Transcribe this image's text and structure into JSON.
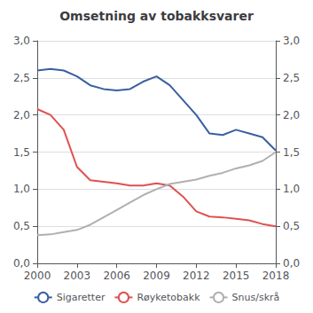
{
  "chart_data": {
    "type": "line",
    "title": "Omsetning av tobakksvarer",
    "x": [
      2000,
      2001,
      2002,
      2003,
      2004,
      2005,
      2006,
      2007,
      2008,
      2009,
      2010,
      2011,
      2012,
      2013,
      2014,
      2015,
      2016,
      2017,
      2018
    ],
    "series": [
      {
        "name": "Sigaretter",
        "color": "#3a5fa0",
        "values": [
          2.6,
          2.62,
          2.6,
          2.52,
          2.4,
          2.35,
          2.33,
          2.35,
          2.45,
          2.52,
          2.4,
          2.2,
          2.0,
          1.75,
          1.73,
          1.8,
          1.75,
          1.7,
          1.52
        ]
      },
      {
        "name": "Røyketobakk",
        "color": "#e05050",
        "values": [
          2.08,
          2.0,
          1.8,
          1.3,
          1.12,
          1.1,
          1.08,
          1.05,
          1.05,
          1.08,
          1.05,
          0.9,
          0.7,
          0.63,
          0.62,
          0.6,
          0.58,
          0.53,
          0.5
        ]
      },
      {
        "name": "Snus/skrå",
        "color": "#b0b0b0",
        "values": [
          0.38,
          0.39,
          0.42,
          0.45,
          0.52,
          0.62,
          0.72,
          0.82,
          0.92,
          1.0,
          1.07,
          1.1,
          1.13,
          1.18,
          1.22,
          1.28,
          1.32,
          1.38,
          1.5
        ]
      }
    ],
    "xlim": [
      2000,
      2018
    ],
    "xticks": [
      2000,
      2003,
      2006,
      2009,
      2012,
      2015,
      2018
    ],
    "ylim": [
      0,
      3.0
    ],
    "yticks": [
      {
        "value": 0.0,
        "label": "0,0"
      },
      {
        "value": 0.5,
        "label": "0,5"
      },
      {
        "value": 1.0,
        "label": "1,0"
      },
      {
        "value": 1.5,
        "label": "1,5"
      },
      {
        "value": 2.0,
        "label": "2,0"
      },
      {
        "value": 2.5,
        "label": "2,5"
      },
      {
        "value": 3.0,
        "label": "3,0"
      }
    ],
    "y2lim": [
      0,
      3.0
    ],
    "y2ticks": [
      {
        "value": 0.0,
        "label": "0,0"
      },
      {
        "value": 0.5,
        "label": "0,5"
      },
      {
        "value": 1.0,
        "label": "1,0"
      },
      {
        "value": 1.5,
        "label": "1,5"
      },
      {
        "value": 2.0,
        "label": "2,0"
      },
      {
        "value": 2.5,
        "label": "2,5"
      },
      {
        "value": 3.0,
        "label": "3,0"
      }
    ],
    "grid": true,
    "legend": "bottom"
  }
}
